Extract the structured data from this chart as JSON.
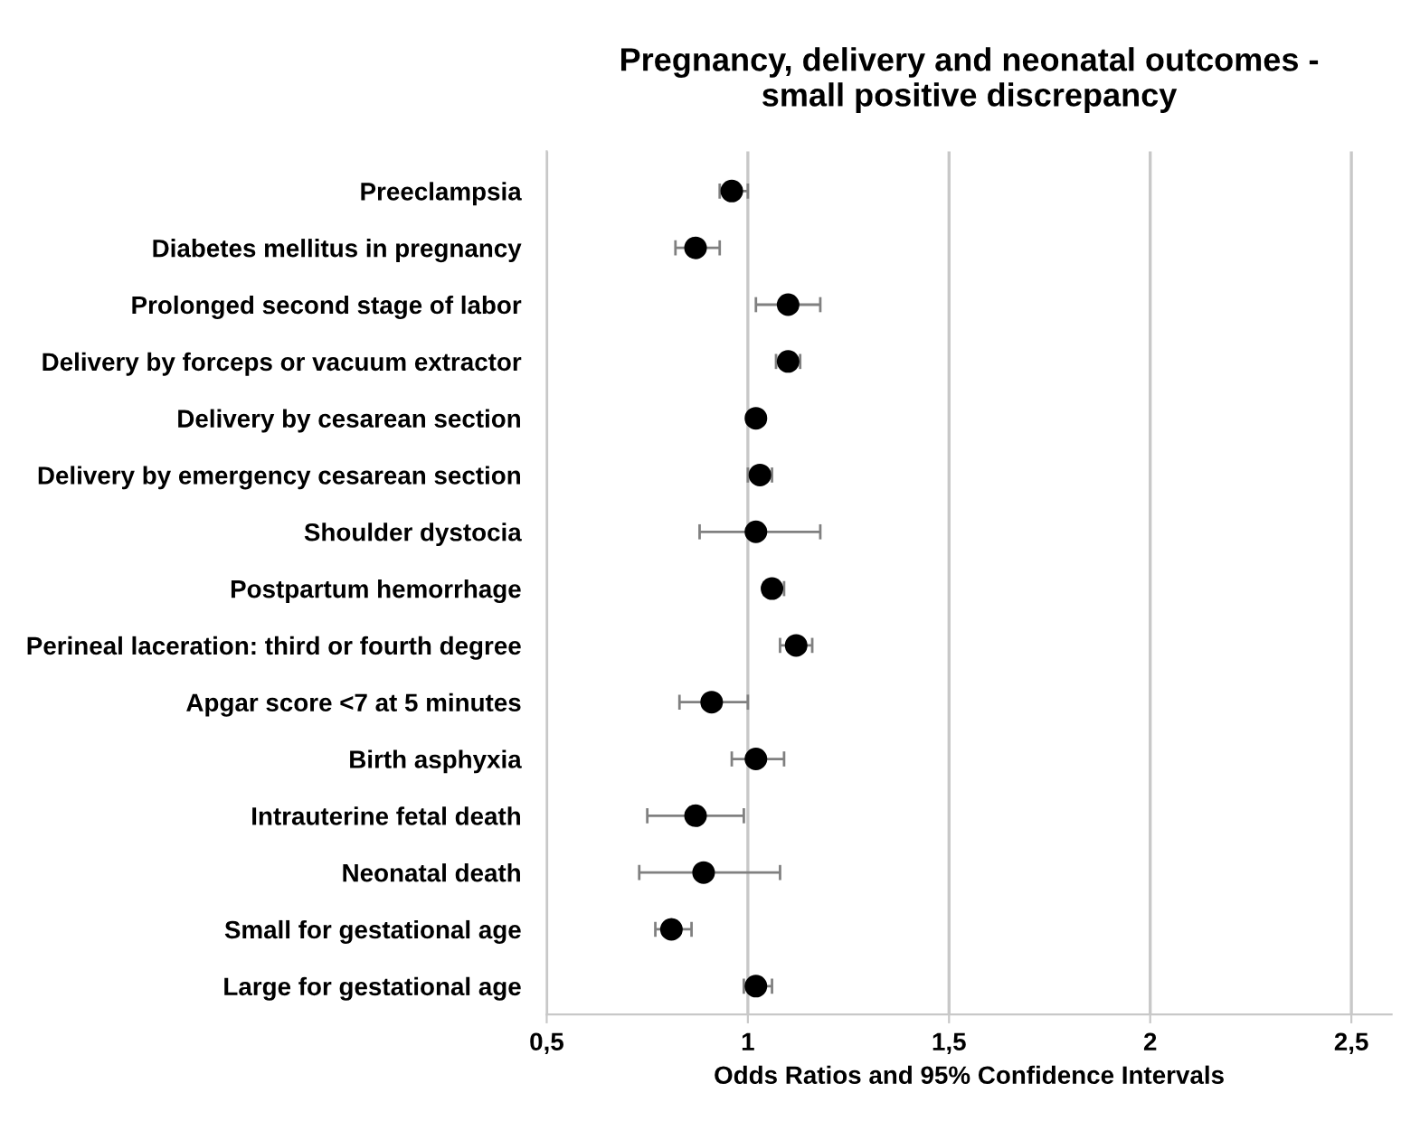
{
  "chart_data": {
    "type": "scatter",
    "title": "Pregnancy, delivery and neonatal outcomes -\nsmall positive discrepancy",
    "xlabel": "Odds Ratios and 95% Confidence Intervals",
    "orientation": "horizontal",
    "categories": [
      "Preeclampsia",
      "Diabetes mellitus in pregnancy",
      "Prolonged second stage of labor",
      "Delivery by forceps or vacuum extractor",
      "Delivery by cesarean section",
      "Delivery by emergency cesarean section",
      "Shoulder dystocia",
      "Postpartum hemorrhage",
      "Perineal laceration: third or fourth degree",
      "Apgar score <7 at 5 minutes",
      "Birth asphyxia",
      "Intrauterine fetal death",
      "Neonatal death",
      "Small for gestational age",
      "Large for gestational age"
    ],
    "series": [
      {
        "color": "#000000",
        "values": [
          0.96,
          0.87,
          1.1,
          1.1,
          1.02,
          1.03,
          1.02,
          1.06,
          1.12,
          0.91,
          1.02,
          0.87,
          0.89,
          0.81,
          1.02
        ],
        "errors": [
          [
            0.93,
            1.0
          ],
          [
            0.82,
            0.93
          ],
          [
            1.02,
            1.18
          ],
          [
            1.07,
            1.13
          ],
          null,
          [
            1.0,
            1.06
          ],
          [
            0.88,
            1.18
          ],
          [
            1.04,
            1.09
          ],
          [
            1.08,
            1.16
          ],
          [
            0.83,
            1.0
          ],
          [
            0.96,
            1.09
          ],
          [
            0.75,
            0.99
          ],
          [
            0.73,
            1.08
          ],
          [
            0.77,
            0.86
          ],
          [
            0.99,
            1.06
          ]
        ]
      }
    ],
    "xlim": [
      0.5,
      2.6
    ],
    "xticks": [
      {
        "value": 0.5,
        "label": "0,5"
      },
      1,
      {
        "value": 1.5,
        "label": "1,5"
      },
      2,
      {
        "value": 2.5,
        "label": "2,5"
      }
    ],
    "grid": "x",
    "marker": "circle",
    "legend": false
  }
}
